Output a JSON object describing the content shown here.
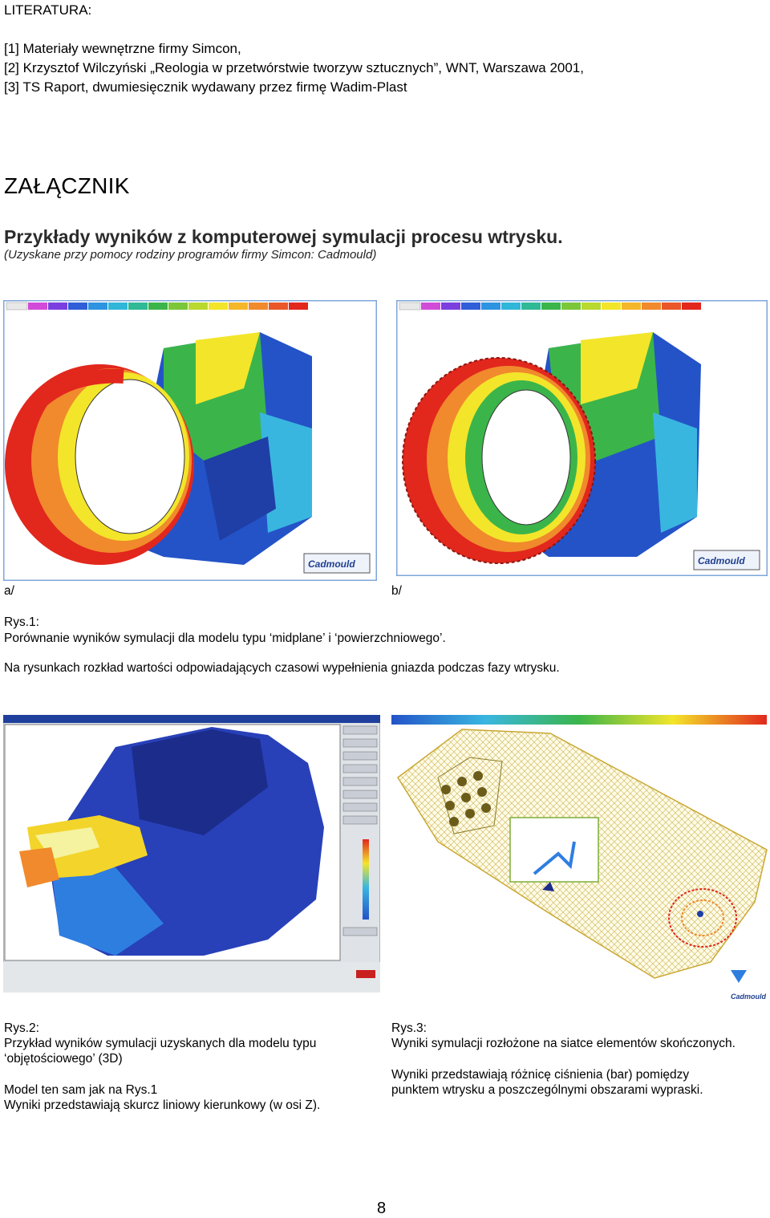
{
  "literature": {
    "heading": "LITERATURA:",
    "items": [
      "[1] Materiały wewnętrzne firmy Simcon,",
      "[2] Krzysztof Wilczyński „Reologia w przetwórstwie tworzyw sztucznych”, WNT, Warszawa 2001,",
      "[3] TS Raport, dwumiesięcznik wydawany przez firmę Wadim-Plast"
    ]
  },
  "appendix": {
    "title": "ZAŁĄCZNIK",
    "subtitle": "Przykłady wyników z komputerowej symulacji procesu wtrysku.",
    "note": "(Uzyskane przy pomocy rodziny programów firmy Simcon: Cadmould)"
  },
  "figure1": {
    "label_a": "a/",
    "label_b": "b/",
    "logo_text": "Cadmould",
    "caption_title": "Rys.1:",
    "caption_line1": "Porównanie wyników symulacji dla modelu typu ‘midplane’ i ‘powierzchniowego’.",
    "caption_line2": "Na rysunkach rozkład wartości odpowiadających czasowi wypełnienia gniazda podczas fazy wtrysku."
  },
  "figure2": {
    "caption_title": "Rys.2:",
    "lines": [
      "Przykład wyników symulacji uzyskanych dla modelu typu",
      "‘objętościowego’ (3D)",
      "",
      "Model ten sam jak na Rys.1",
      "Wyniki przedstawiają skurcz liniowy kierunkowy (w osi Z)."
    ]
  },
  "figure3": {
    "caption_title": "Rys.3:",
    "lines": [
      "Wyniki symulacji rozłożone na siatce elementów skończonych.",
      "",
      "Wyniki przedstawiają różnicę ciśnienia (bar) pomiędzy",
      "punktem wtrysku a poszczególnymi obszarami wypraski."
    ],
    "logo_text": "Cadmould"
  },
  "page_number": "8",
  "colors": {
    "red": "#e2271d",
    "orange": "#f08a2c",
    "yellow": "#f3e52a",
    "green": "#3bb54a",
    "blue": "#2453c8",
    "cyan": "#39b6e0",
    "frame": "#6f9bd6"
  }
}
